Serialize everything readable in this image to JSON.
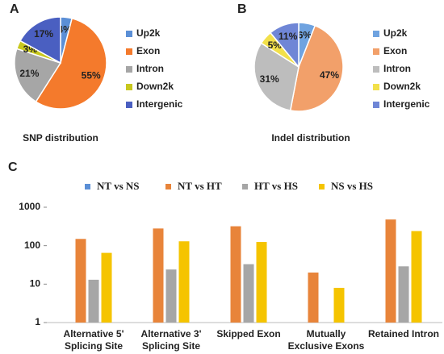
{
  "chart_data": [
    {
      "type": "pie",
      "panel": "A",
      "title": "SNP distribution",
      "categories": [
        "Up2k",
        "Exon",
        "Intron",
        "Down2k",
        "Intergenic"
      ],
      "values": [
        4,
        55,
        21,
        3,
        17
      ],
      "value_labels": [
        "4%",
        "55%",
        "21%",
        "3%",
        "17%"
      ],
      "colors": [
        "#5b8fd6",
        "#f47a2c",
        "#a6a6a6",
        "#c8c81e",
        "#4a5fc1"
      ]
    },
    {
      "type": "pie",
      "panel": "B",
      "title": "Indel distribution",
      "categories": [
        "Up2k",
        "Exon",
        "Intron",
        "Down2k",
        "Intergenic"
      ],
      "values": [
        6,
        47,
        31,
        5,
        11
      ],
      "value_labels": [
        "6%",
        "47%",
        "31%",
        "5%",
        "11%"
      ],
      "colors": [
        "#6fa3e0",
        "#f2a06a",
        "#bdbdbd",
        "#f2e04a",
        "#6f86d6"
      ]
    },
    {
      "type": "bar",
      "panel": "C",
      "log_scale": true,
      "categories": [
        [
          "Alternative 5'",
          "Splicing Site"
        ],
        [
          "Alternative 3'",
          "Splicing Site"
        ],
        [
          "Skipped Exon"
        ],
        [
          "Mutually",
          "Exclusive Exons"
        ],
        [
          "Retained Intron"
        ]
      ],
      "series": [
        {
          "name": "NT vs NS",
          "color": "#5b8fd6",
          "values": [
            null,
            null,
            null,
            null,
            null
          ]
        },
        {
          "name": "NT vs HT",
          "color": "#e8843a",
          "values": [
            150,
            280,
            320,
            20,
            480
          ]
        },
        {
          "name": "HT vs HS",
          "color": "#a6a6a6",
          "values": [
            13,
            24,
            33,
            null,
            29
          ]
        },
        {
          "name": "NS vs HS",
          "color": "#f5c400",
          "values": [
            65,
            130,
            125,
            8,
            240
          ]
        }
      ],
      "ylim": [
        1,
        1000
      ],
      "yticks": [
        1,
        10,
        100,
        1000
      ]
    }
  ]
}
